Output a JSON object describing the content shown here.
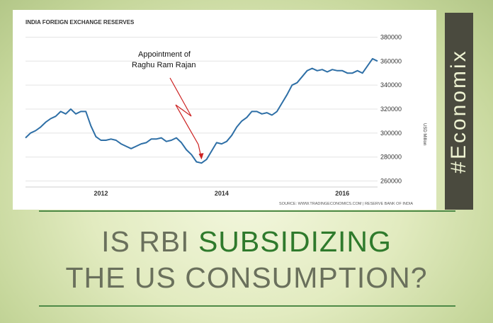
{
  "headline": {
    "line1_prefix": "IS RBI",
    "line1_emphasis": "SUBSIDIZING",
    "line2": "THE US CONSUMPTION?"
  },
  "side_banner": "#Economix",
  "colors": {
    "series_line": "#2e6fa6",
    "annotation_arrow": "#cc2222",
    "headline_emphasis": "#2f7a2c",
    "rule": "#4e8a47"
  },
  "chart_data": {
    "type": "line",
    "title": "INDIA FOREIGN EXCHANGE RESERVES",
    "xlabel": "",
    "ylabel": "USD Million",
    "x_ticks": [
      "2012",
      "2014",
      "2016"
    ],
    "y_ticks": [
      260000,
      280000,
      300000,
      320000,
      340000,
      360000,
      380000
    ],
    "y_tick_labels": [
      "260000",
      "280000",
      "300000",
      "320000",
      "340000",
      "360000",
      "380000"
    ],
    "ylim": [
      255000,
      385000
    ],
    "xlim": [
      "2010-10",
      "2016-08"
    ],
    "grid": "horizontal",
    "source": "SOURCE: WWW.TRADINGECONOMICS.COM | RESERVE BANK OF INDIA",
    "annotation": {
      "text_line1": "Appointment of",
      "text_line2": "Raghu Ram Rajan",
      "date": "2013-09"
    },
    "series": [
      {
        "x": [
          "2010-10",
          "2010-11",
          "2010-12",
          "2011-01",
          "2011-02",
          "2011-03",
          "2011-04",
          "2011-05",
          "2011-06",
          "2011-07",
          "2011-08",
          "2011-09",
          "2011-10",
          "2011-11",
          "2011-12",
          "2012-01",
          "2012-02",
          "2012-03",
          "2012-04",
          "2012-05",
          "2012-06",
          "2012-07",
          "2012-08",
          "2012-09",
          "2012-10",
          "2012-11",
          "2012-12",
          "2013-01",
          "2013-02",
          "2013-03",
          "2013-04",
          "2013-05",
          "2013-06",
          "2013-07",
          "2013-08",
          "2013-09",
          "2013-10",
          "2013-11",
          "2013-12",
          "2014-01",
          "2014-02",
          "2014-03",
          "2014-04",
          "2014-05",
          "2014-06",
          "2014-07",
          "2014-08",
          "2014-09",
          "2014-10",
          "2014-11",
          "2014-12",
          "2015-01",
          "2015-02",
          "2015-03",
          "2015-04",
          "2015-05",
          "2015-06",
          "2015-07",
          "2015-08",
          "2015-09",
          "2015-10",
          "2015-11",
          "2015-12",
          "2016-01",
          "2016-02",
          "2016-03",
          "2016-04",
          "2016-05",
          "2016-06",
          "2016-07",
          "2016-08"
        ],
        "values": [
          296000,
          300000,
          302000,
          305000,
          309000,
          312000,
          314000,
          318000,
          316000,
          320000,
          316000,
          318000,
          318000,
          306000,
          297000,
          294000,
          294000,
          295000,
          294000,
          291000,
          289000,
          287000,
          289000,
          291000,
          292000,
          295000,
          295000,
          296000,
          293000,
          294000,
          296000,
          292000,
          286000,
          282000,
          276000,
          275000,
          278000,
          285000,
          292000,
          291000,
          293000,
          298000,
          305000,
          310000,
          313000,
          318000,
          318000,
          316000,
          317000,
          315000,
          318000,
          325000,
          332000,
          340000,
          342000,
          347000,
          352000,
          354000,
          352000,
          353000,
          351000,
          353000,
          352000,
          352000,
          350000,
          350000,
          352000,
          350000,
          356000,
          362000,
          360000
        ]
      }
    ]
  }
}
